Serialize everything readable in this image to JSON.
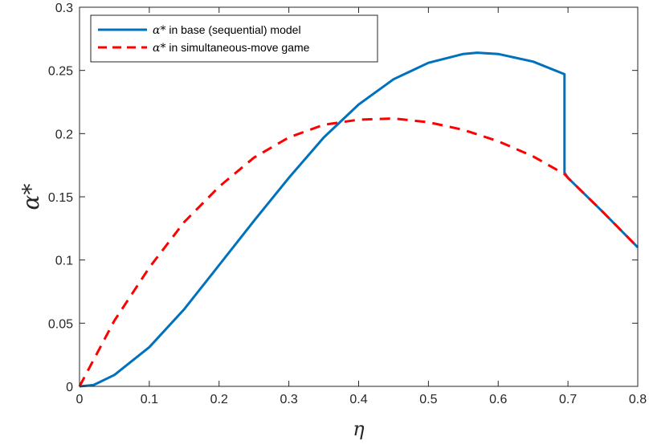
{
  "chart_data": {
    "type": "line",
    "xlabel": "η",
    "ylabel": "α*",
    "xlim": [
      0,
      0.8
    ],
    "ylim": [
      0,
      0.3
    ],
    "xticks": [
      "0",
      "0.1",
      "0.2",
      "0.3",
      "0.4",
      "0.5",
      "0.6",
      "0.7",
      "0.8"
    ],
    "yticks": [
      "0",
      "0.05",
      "0.1",
      "0.15",
      "0.2",
      "0.25",
      "0.3"
    ],
    "grid": false,
    "legend_position": "top-left",
    "series": [
      {
        "name": "α* in base (sequential) model",
        "legend_symbol": "α*",
        "legend_text": " in base (sequential) model",
        "color": "#0072BD",
        "style": "solid",
        "x": [
          0,
          0.02,
          0.05,
          0.1,
          0.15,
          0.2,
          0.25,
          0.3,
          0.35,
          0.4,
          0.45,
          0.5,
          0.55,
          0.57,
          0.6,
          0.65,
          0.695,
          0.695,
          0.7,
          0.75,
          0.8
        ],
        "y": [
          0,
          0.001,
          0.009,
          0.031,
          0.061,
          0.096,
          0.131,
          0.165,
          0.197,
          0.223,
          0.243,
          0.256,
          0.263,
          0.264,
          0.263,
          0.257,
          0.247,
          0.169,
          0.165,
          0.138,
          0.11
        ]
      },
      {
        "name": "α* in simultaneous-move game",
        "legend_symbol": "α*",
        "legend_text": " in simultaneous-move game",
        "color": "#FF0000",
        "style": "dashed",
        "x": [
          0,
          0.05,
          0.1,
          0.15,
          0.2,
          0.25,
          0.3,
          0.35,
          0.4,
          0.45,
          0.5,
          0.55,
          0.6,
          0.65,
          0.695,
          0.7,
          0.75,
          0.8
        ],
        "y": [
          0,
          0.052,
          0.094,
          0.13,
          0.158,
          0.181,
          0.197,
          0.207,
          0.211,
          0.212,
          0.209,
          0.203,
          0.194,
          0.182,
          0.168,
          0.165,
          0.138,
          0.11
        ]
      }
    ]
  }
}
